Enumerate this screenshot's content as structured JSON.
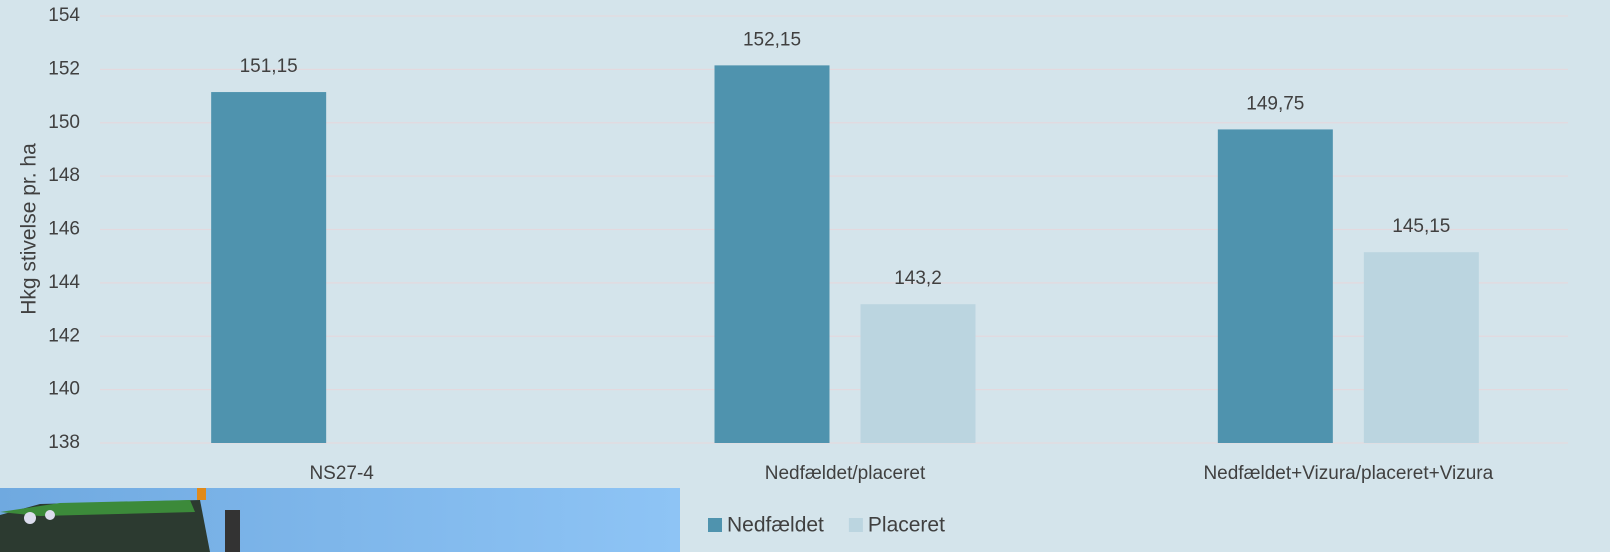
{
  "chart_data": {
    "type": "bar",
    "y_label": "Hkg stivelse pr. ha",
    "categories": [
      "NS27-4",
      "Nedfældet/placeret",
      "Nedfældet+Vizura/placeret+Vizura"
    ],
    "series": [
      {
        "name": "Nedfældet",
        "color": "#4f93ae",
        "values": [
          151.15,
          152.15,
          149.75
        ],
        "value_labels": [
          "151,15",
          "152,15",
          "149,75"
        ]
      },
      {
        "name": "Placeret",
        "color": "#bbd5e0",
        "values": [
          null,
          143.2,
          145.15
        ],
        "value_labels": [
          null,
          "143,2",
          "145,15"
        ]
      }
    ],
    "ylim": [
      138,
      154
    ],
    "yticks": [
      138,
      140,
      142,
      144,
      146,
      148,
      150,
      152,
      154
    ],
    "grid": true,
    "legend": "bottom"
  }
}
